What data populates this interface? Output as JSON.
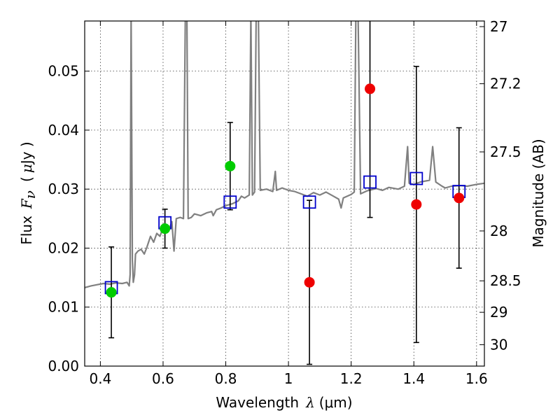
{
  "chart_data": {
    "type": "scatter",
    "title": "",
    "grid": true,
    "legend": "none",
    "x_axis": {
      "label_prefix": "Wavelength",
      "label_symbol": "λ",
      "label_unit": "(μm)",
      "range": [
        0.35,
        1.625
      ],
      "ticks": [
        {
          "value": 0.4,
          "label": "0.4"
        },
        {
          "value": 0.6,
          "label": "0.6"
        },
        {
          "value": 0.8,
          "label": "0.8"
        },
        {
          "value": 1.0,
          "label": "1"
        },
        {
          "value": 1.2,
          "label": "1.2"
        },
        {
          "value": 1.4,
          "label": "1.4"
        },
        {
          "value": 1.6,
          "label": "1.6"
        }
      ]
    },
    "y_axis": {
      "label_prefix": "Flux",
      "label_symbol": "F",
      "label_subscript": "ν",
      "label_unit_open": "(",
      "label_unit_mu": "μ",
      "label_unit_rest": "Jy )",
      "range": [
        0.0,
        0.0585
      ],
      "ticks": [
        {
          "value": 0.0,
          "label": "0.00"
        },
        {
          "value": 0.01,
          "label": "0.01"
        },
        {
          "value": 0.02,
          "label": "0.02"
        },
        {
          "value": 0.03,
          "label": "0.03"
        },
        {
          "value": 0.04,
          "label": "0.04"
        },
        {
          "value": 0.05,
          "label": "0.05"
        }
      ]
    },
    "y2_axis": {
      "label": "Magnitude (AB)",
      "ticks": [
        {
          "magnitude": 27.0,
          "label": "27"
        },
        {
          "magnitude": 27.2,
          "label": "27.2"
        },
        {
          "magnitude": 27.5,
          "label": "27.5"
        },
        {
          "magnitude": 28.0,
          "label": "28"
        },
        {
          "magnitude": 28.5,
          "label": "28.5"
        },
        {
          "magnitude": 29.0,
          "label": "29"
        },
        {
          "magnitude": 30.0,
          "label": "30"
        }
      ]
    },
    "series": [
      {
        "kind": "spectrum",
        "color": "#808080",
        "points": [
          [
            0.35,
            0.0133
          ],
          [
            0.37,
            0.0136
          ],
          [
            0.39,
            0.0138
          ],
          [
            0.41,
            0.014
          ],
          [
            0.43,
            0.0139
          ],
          [
            0.45,
            0.0141
          ],
          [
            0.47,
            0.014
          ],
          [
            0.485,
            0.0142
          ],
          [
            0.492,
            0.0136
          ],
          [
            0.495,
            0.0155
          ],
          [
            0.498,
            0.06
          ],
          [
            0.502,
            0.018
          ],
          [
            0.505,
            0.0142
          ],
          [
            0.509,
            0.0155
          ],
          [
            0.512,
            0.019
          ],
          [
            0.52,
            0.0195
          ],
          [
            0.53,
            0.0198
          ],
          [
            0.54,
            0.019
          ],
          [
            0.548,
            0.0201
          ],
          [
            0.56,
            0.022
          ],
          [
            0.57,
            0.021
          ],
          [
            0.58,
            0.0225
          ],
          [
            0.59,
            0.022
          ],
          [
            0.6,
            0.0235
          ],
          [
            0.61,
            0.024
          ],
          [
            0.62,
            0.0232
          ],
          [
            0.628,
            0.0245
          ],
          [
            0.635,
            0.0195
          ],
          [
            0.642,
            0.025
          ],
          [
            0.655,
            0.0252
          ],
          [
            0.665,
            0.025
          ],
          [
            0.671,
            0.06
          ],
          [
            0.676,
            0.06
          ],
          [
            0.68,
            0.025
          ],
          [
            0.69,
            0.0252
          ],
          [
            0.7,
            0.0258
          ],
          [
            0.72,
            0.0255
          ],
          [
            0.74,
            0.026
          ],
          [
            0.755,
            0.0262
          ],
          [
            0.76,
            0.0255
          ],
          [
            0.77,
            0.0265
          ],
          [
            0.785,
            0.0268
          ],
          [
            0.8,
            0.0272
          ],
          [
            0.82,
            0.0275
          ],
          [
            0.84,
            0.028
          ],
          [
            0.85,
            0.0288
          ],
          [
            0.86,
            0.0285
          ],
          [
            0.875,
            0.029
          ],
          [
            0.88,
            0.06
          ],
          [
            0.885,
            0.029
          ],
          [
            0.892,
            0.0295
          ],
          [
            0.897,
            0.06
          ],
          [
            0.904,
            0.06
          ],
          [
            0.91,
            0.0298
          ],
          [
            0.93,
            0.03
          ],
          [
            0.95,
            0.0296
          ],
          [
            0.958,
            0.033
          ],
          [
            0.962,
            0.0298
          ],
          [
            0.98,
            0.0302
          ],
          [
            1.0,
            0.0298
          ],
          [
            1.02,
            0.0296
          ],
          [
            1.04,
            0.0292
          ],
          [
            1.06,
            0.0288
          ],
          [
            1.08,
            0.0294
          ],
          [
            1.1,
            0.029
          ],
          [
            1.12,
            0.0295
          ],
          [
            1.14,
            0.0289
          ],
          [
            1.16,
            0.0283
          ],
          [
            1.168,
            0.0268
          ],
          [
            1.175,
            0.0285
          ],
          [
            1.2,
            0.0291
          ],
          [
            1.21,
            0.0295
          ],
          [
            1.215,
            0.06
          ],
          [
            1.222,
            0.06
          ],
          [
            1.23,
            0.0292
          ],
          [
            1.25,
            0.0297
          ],
          [
            1.28,
            0.0301
          ],
          [
            1.3,
            0.0298
          ],
          [
            1.32,
            0.0303
          ],
          [
            1.35,
            0.03
          ],
          [
            1.37,
            0.0305
          ],
          [
            1.38,
            0.0372
          ],
          [
            1.385,
            0.031
          ],
          [
            1.4,
            0.0308
          ],
          [
            1.42,
            0.0312
          ],
          [
            1.45,
            0.0315
          ],
          [
            1.46,
            0.0372
          ],
          [
            1.47,
            0.0312
          ],
          [
            1.49,
            0.0305
          ],
          [
            1.5,
            0.0302
          ],
          [
            1.52,
            0.0305
          ],
          [
            1.55,
            0.0306
          ],
          [
            1.57,
            0.0305
          ],
          [
            1.6,
            0.0308
          ],
          [
            1.625,
            0.031
          ]
        ]
      },
      {
        "kind": "model_points",
        "marker": "open_square",
        "color": "#0000cc",
        "points": [
          {
            "x": 0.435,
            "y": 0.0133
          },
          {
            "x": 0.606,
            "y": 0.0243
          },
          {
            "x": 0.814,
            "y": 0.0278
          },
          {
            "x": 1.067,
            "y": 0.0278
          },
          {
            "x": 1.26,
            "y": 0.0312
          },
          {
            "x": 1.408,
            "y": 0.0318
          },
          {
            "x": 1.544,
            "y": 0.0296
          }
        ]
      },
      {
        "kind": "observed_points",
        "marker": "filled_circle",
        "color": "#00cc00",
        "points": [
          {
            "x": 0.435,
            "y": 0.0125,
            "err": 0.0077
          },
          {
            "x": 0.606,
            "y": 0.0233,
            "err": 0.0033
          },
          {
            "x": 0.814,
            "y": 0.0339,
            "err": 0.0074
          }
        ]
      },
      {
        "kind": "observed_points",
        "marker": "filled_circle",
        "color": "#ee0000",
        "points": [
          {
            "x": 1.067,
            "y": 0.0142,
            "err": 0.0139
          },
          {
            "x": 1.26,
            "y": 0.047,
            "err": 0.0218
          },
          {
            "x": 1.408,
            "y": 0.0274,
            "err": 0.0234
          },
          {
            "x": 1.544,
            "y": 0.0285,
            "err": 0.0119
          }
        ]
      }
    ]
  }
}
